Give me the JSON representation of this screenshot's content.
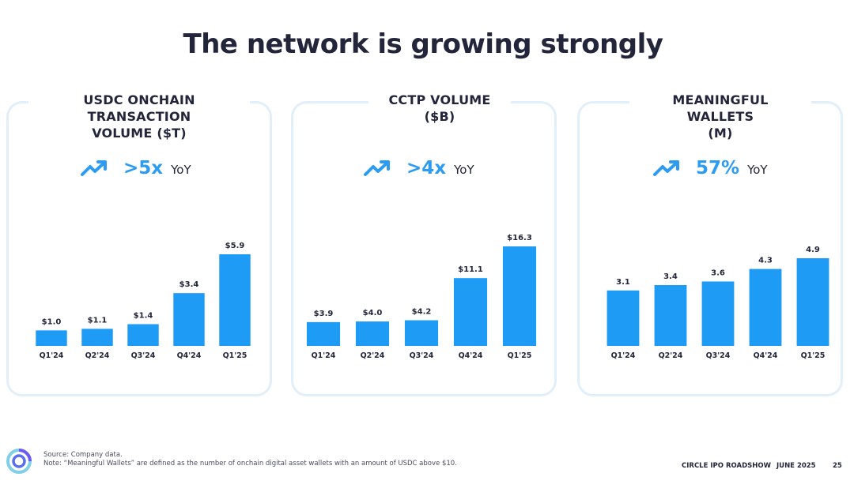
{
  "title": "The network is growing strongly",
  "panels": [
    {
      "title_line1": "USDC ONCHAIN TRANSACTION",
      "title_line2": "VOLUME ($T)",
      "yoy_value": ">5x",
      "yoy_label": "YoY"
    },
    {
      "title_line1": "CCTP VOLUME",
      "title_line2": "($B)",
      "yoy_value": ">4x",
      "yoy_label": "YoY"
    },
    {
      "title_line1": "MEANINGFUL WALLETS",
      "title_line2": "(M)",
      "yoy_value": "57%",
      "yoy_label": "YoY"
    }
  ],
  "chart_data": [
    {
      "type": "bar",
      "title": "USDC ONCHAIN TRANSACTION VOLUME ($T)",
      "categories": [
        "Q1'24",
        "Q2'24",
        "Q3'24",
        "Q4'24",
        "Q1'25"
      ],
      "values": [
        1.0,
        1.1,
        1.4,
        3.4,
        5.9
      ],
      "labels": [
        "$1.0",
        "$1.1",
        "$1.4",
        "$3.4",
        "$5.9"
      ],
      "color": "#1e9bf5"
    },
    {
      "type": "bar",
      "title": "CCTP VOLUME ($B)",
      "categories": [
        "Q1'24",
        "Q2'24",
        "Q3'24",
        "Q4'24",
        "Q1'25"
      ],
      "values": [
        3.9,
        4.0,
        4.2,
        11.1,
        16.3
      ],
      "labels": [
        "$3.9",
        "$4.0",
        "$4.2",
        "$11.1",
        "$16.3"
      ],
      "color": "#1e9bf5"
    },
    {
      "type": "bar",
      "title": "MEANINGFUL WALLETS (M)",
      "categories": [
        "Q1'24",
        "Q2'24",
        "Q3'24",
        "Q4'24",
        "Q1'25"
      ],
      "values": [
        3.1,
        3.4,
        3.6,
        4.3,
        4.9
      ],
      "labels": [
        "3.1",
        "3.4",
        "3.6",
        "4.3",
        "4.9"
      ],
      "color": "#1e9bf5"
    }
  ],
  "footer": {
    "source": "Source: Company data.",
    "note": "Note: “Meaningful Wallets” are defined as the number of onchain digital asset wallets with an amount of USDC above $10.",
    "roadshow": "CIRCLE IPO ROADSHOW",
    "date": "JUNE 2025",
    "page": "25"
  },
  "colors": {
    "accent": "#2b9cf2",
    "bar": "#1e9bf5",
    "panel_border": "#e1effb",
    "text": "#23263b"
  },
  "icons": {
    "trend": "trending-up-icon",
    "logo": "circle-logo-icon"
  }
}
